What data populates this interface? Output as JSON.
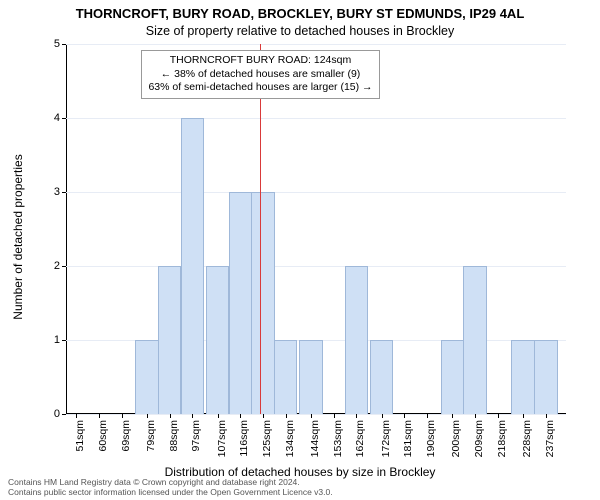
{
  "title_main": "THORNCROFT, BURY ROAD, BROCKLEY, BURY ST EDMUNDS, IP29 4AL",
  "title_sub": "Size of property relative to detached houses in Brockley",
  "ylabel": "Number of detached properties",
  "xlabel": "Distribution of detached houses by size in Brockley",
  "footnote1": "Contains HM Land Registry data © Crown copyright and database right 2024.",
  "footnote2": "Contains public sector information licensed under the Open Government Licence v3.0.",
  "chart": {
    "type": "histogram",
    "background_color": "#ffffff",
    "grid_color": "#e7ecf5",
    "bar_color": "#cfe0f5",
    "bar_border": "#9fb8d9",
    "marker_color": "#d93a3a",
    "text_color": "#000000",
    "annot_border": "#999999",
    "ylim": [
      0,
      5
    ],
    "yticks": [
      0,
      1,
      2,
      3,
      4,
      5
    ],
    "x_min": 47,
    "x_max": 245,
    "x_tick_values": [
      51,
      60,
      69,
      79,
      88,
      97,
      107,
      116,
      125,
      134,
      144,
      153,
      162,
      172,
      181,
      190,
      200,
      209,
      218,
      228,
      237
    ],
    "x_tick_labels": [
      "51sqm",
      "60sqm",
      "69sqm",
      "79sqm",
      "88sqm",
      "97sqm",
      "107sqm",
      "116sqm",
      "125sqm",
      "134sqm",
      "144sqm",
      "153sqm",
      "162sqm",
      "172sqm",
      "181sqm",
      "190sqm",
      "200sqm",
      "209sqm",
      "218sqm",
      "228sqm",
      "237sqm"
    ],
    "bar_width_sqm": 9.3,
    "bars": [
      {
        "x": 79,
        "h": 1
      },
      {
        "x": 88,
        "h": 2
      },
      {
        "x": 97,
        "h": 4
      },
      {
        "x": 107,
        "h": 2
      },
      {
        "x": 116,
        "h": 3
      },
      {
        "x": 125,
        "h": 3
      },
      {
        "x": 134,
        "h": 1
      },
      {
        "x": 144,
        "h": 1
      },
      {
        "x": 162,
        "h": 2
      },
      {
        "x": 172,
        "h": 1
      },
      {
        "x": 200,
        "h": 1
      },
      {
        "x": 209,
        "h": 2
      },
      {
        "x": 228,
        "h": 1
      },
      {
        "x": 237,
        "h": 1
      }
    ],
    "marker_x": 124,
    "annot_lines": [
      "THORNCROFT BURY ROAD: 124sqm",
      "← 38% of detached houses are smaller (9)",
      "63% of semi-detached houses are larger (15) →"
    ],
    "title_fontsize": 13,
    "subtitle_fontsize": 12.5,
    "label_fontsize": 12,
    "tick_fontsize": 11,
    "annot_fontsize": 10.5
  }
}
